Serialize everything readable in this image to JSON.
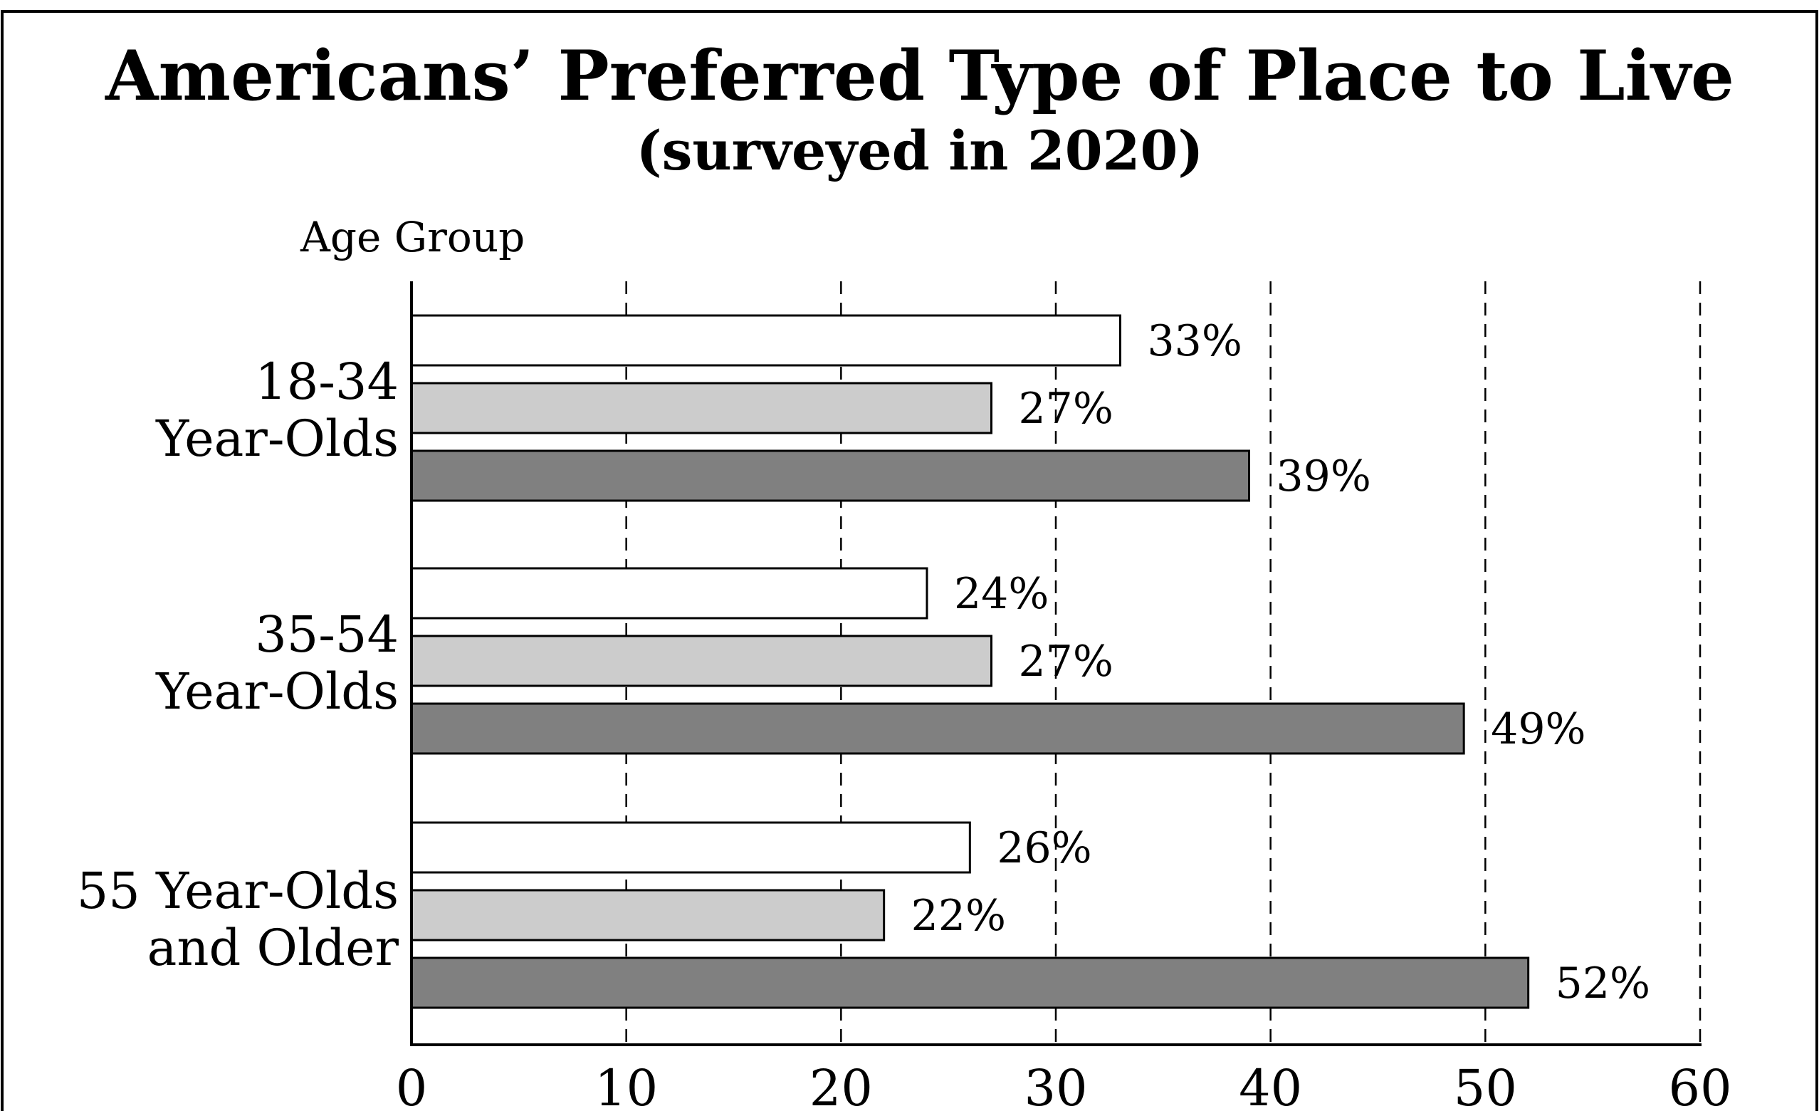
{
  "chart_data": {
    "type": "bar",
    "orientation": "horizontal",
    "title": "Americans’ Preferred Type of Place to Live",
    "subtitle": "(surveyed in 2020)",
    "ylabel": "Age Group",
    "xlabel": "",
    "xlim": [
      0,
      60
    ],
    "x_ticks": [
      "0",
      "10",
      "20",
      "30",
      "40",
      "50",
      "60"
    ],
    "grid": "vertical dashed",
    "legend": "none",
    "categories": [
      {
        "lines": [
          "18-34",
          "Year-Olds"
        ]
      },
      {
        "lines": [
          "35-54",
          "Year-Olds"
        ]
      },
      {
        "lines": [
          "55  Year-Olds",
          "and Older"
        ]
      }
    ],
    "series": [
      {
        "color": "#ffffff",
        "values": [
          33,
          24,
          26
        ],
        "labels": [
          "33%",
          "24%",
          "26%"
        ]
      },
      {
        "color": "#cccccc",
        "values": [
          27,
          27,
          22
        ],
        "labels": [
          "27%",
          "27%",
          "22%"
        ]
      },
      {
        "color": "#808080",
        "values": [
          39,
          49,
          52
        ],
        "labels": [
          "39%",
          "49%",
          "52%"
        ]
      }
    ]
  }
}
